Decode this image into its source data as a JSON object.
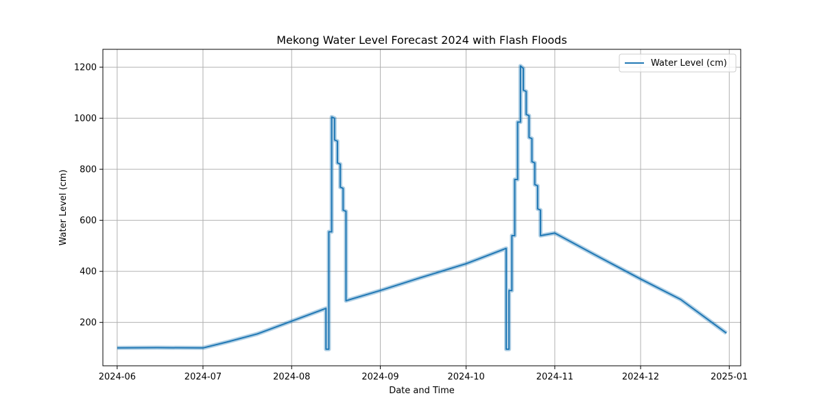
{
  "chart_data": {
    "type": "line",
    "title": "Mekong Water Level Forecast 2024 with Flash Floods",
    "xlabel": "Date and Time",
    "ylabel": "Water Level (cm)",
    "xlim": [
      "2024-05-27",
      "2025-01-05"
    ],
    "ylim": [
      30,
      1270
    ],
    "x_ticks": [
      "2024-06",
      "2024-07",
      "2024-08",
      "2024-09",
      "2024-10",
      "2024-11",
      "2024-12",
      "2025-01"
    ],
    "y_ticks": [
      200,
      400,
      600,
      800,
      1000,
      1200
    ],
    "grid": true,
    "legend_position": "top-right",
    "series": [
      {
        "name": "Water Level (cm)",
        "color": "#1f77b4",
        "points": [
          [
            "2024-06-01",
            100
          ],
          [
            "2024-06-15",
            101
          ],
          [
            "2024-07-01",
            100
          ],
          [
            "2024-07-10",
            125
          ],
          [
            "2024-07-20",
            155
          ],
          [
            "2024-08-01",
            205
          ],
          [
            "2024-08-13",
            255
          ],
          [
            "2024-08-13",
            95
          ],
          [
            "2024-08-14",
            95
          ],
          [
            "2024-08-14",
            555
          ],
          [
            "2024-08-15",
            555
          ],
          [
            "2024-08-15",
            1005
          ],
          [
            "2024-08-16",
            1000
          ],
          [
            "2024-08-16",
            915
          ],
          [
            "2024-08-17",
            910
          ],
          [
            "2024-08-17",
            825
          ],
          [
            "2024-08-18",
            820
          ],
          [
            "2024-08-18",
            730
          ],
          [
            "2024-08-19",
            725
          ],
          [
            "2024-08-19",
            640
          ],
          [
            "2024-08-20",
            635
          ],
          [
            "2024-08-20",
            285
          ],
          [
            "2024-09-01",
            325
          ],
          [
            "2024-09-15",
            375
          ],
          [
            "2024-10-01",
            430
          ],
          [
            "2024-10-15",
            490
          ],
          [
            "2024-10-15",
            95
          ],
          [
            "2024-10-16",
            95
          ],
          [
            "2024-10-16",
            325
          ],
          [
            "2024-10-17",
            325
          ],
          [
            "2024-10-17",
            540
          ],
          [
            "2024-10-18",
            540
          ],
          [
            "2024-10-18",
            760
          ],
          [
            "2024-10-19",
            760
          ],
          [
            "2024-10-19",
            985
          ],
          [
            "2024-10-20",
            985
          ],
          [
            "2024-10-20",
            1205
          ],
          [
            "2024-10-21",
            1195
          ],
          [
            "2024-10-21",
            1110
          ],
          [
            "2024-10-22",
            1105
          ],
          [
            "2024-10-22",
            1015
          ],
          [
            "2024-10-23",
            1010
          ],
          [
            "2024-10-23",
            925
          ],
          [
            "2024-10-24",
            920
          ],
          [
            "2024-10-24",
            830
          ],
          [
            "2024-10-25",
            825
          ],
          [
            "2024-10-25",
            740
          ],
          [
            "2024-10-26",
            735
          ],
          [
            "2024-10-26",
            645
          ],
          [
            "2024-10-27",
            640
          ],
          [
            "2024-10-27",
            540
          ],
          [
            "2024-11-01",
            550
          ],
          [
            "2024-11-15",
            465
          ],
          [
            "2024-12-01",
            370
          ],
          [
            "2024-12-15",
            290
          ],
          [
            "2024-12-31",
            158
          ]
        ]
      }
    ]
  }
}
